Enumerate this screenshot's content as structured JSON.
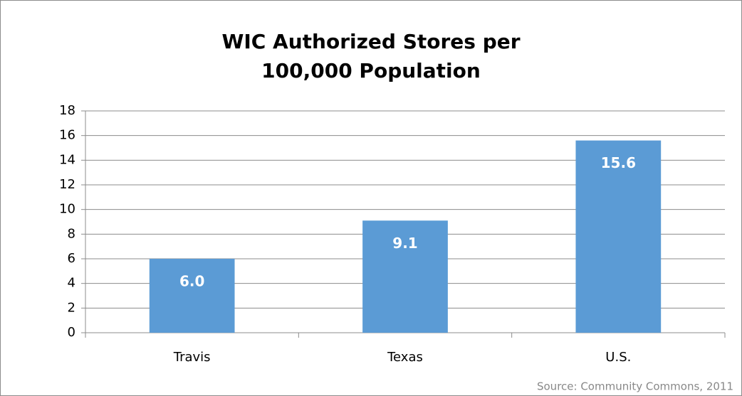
{
  "chart_data": {
    "type": "bar",
    "title": [
      "WIC Authorized Stores per",
      "100,000 Population"
    ],
    "categories": [
      "Travis",
      "Texas",
      "U.S."
    ],
    "values": [
      6,
      9.1,
      15.6
    ],
    "value_labels": [
      "6.0",
      "9.1",
      "15.6"
    ],
    "color": "#5b9bd5",
    "ylim": [
      0,
      18
    ],
    "yticks": [
      0,
      2,
      4,
      6,
      8,
      10,
      12,
      14,
      16,
      18
    ],
    "grid": true,
    "source": "Source: Community Commons, 2011"
  }
}
